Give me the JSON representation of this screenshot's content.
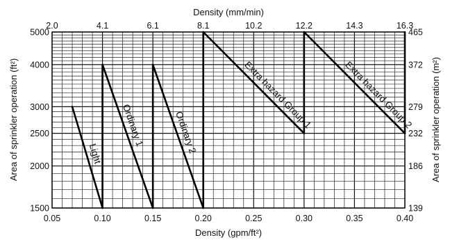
{
  "chart_data": {
    "type": "line",
    "title": "",
    "xlabel": "Density (gpm/ft²)",
    "xlabel_top": "Density (mm/min)",
    "ylabel": "Area of sprinkler operation (ft²)",
    "ylabel_right": "Area of sprinkler operation (m²)",
    "xlim": [
      0.05,
      0.4
    ],
    "ylim": [
      1500,
      5000
    ],
    "y_scale": "log",
    "grid": true,
    "x_ticks": [
      "0.05",
      "0.10",
      "0.15",
      "0.20",
      "0.25",
      "0.30",
      "0.35",
      "0.40"
    ],
    "x_tick_values": [
      0.05,
      0.1,
      0.15,
      0.2,
      0.25,
      0.3,
      0.35,
      0.4
    ],
    "x_ticks_top": [
      "2.0",
      "4.1",
      "6.1",
      "8.1",
      "10.2",
      "12.2",
      "14.3",
      "16.3"
    ],
    "y_ticks": [
      "1500",
      "2000",
      "2500",
      "3000",
      "4000",
      "5000"
    ],
    "y_tick_values": [
      1500,
      2000,
      2500,
      3000,
      4000,
      5000
    ],
    "y_ticks_right": [
      "139",
      "186",
      "232",
      "279",
      "372",
      "465"
    ],
    "series": [
      {
        "name": "Light",
        "points": [
          [
            0.1,
            1500
          ],
          [
            0.07,
            3000
          ]
        ]
      },
      {
        "name": "Ordinary 1",
        "points": [
          [
            0.15,
            1500
          ],
          [
            0.1,
            4000
          ]
        ]
      },
      {
        "name": "Ordinary 2",
        "points": [
          [
            0.2,
            1500
          ],
          [
            0.15,
            4000
          ]
        ]
      },
      {
        "name": "Extra hazard Group 1",
        "points": [
          [
            0.3,
            2500
          ],
          [
            0.2,
            5000
          ]
        ]
      },
      {
        "name": "Extra hazard Group 2",
        "points": [
          [
            0.4,
            2500
          ],
          [
            0.3,
            5000
          ]
        ]
      }
    ],
    "verticals": [
      {
        "x": 0.1,
        "y": [
          1500,
          4000
        ]
      },
      {
        "x": 0.15,
        "y": [
          1500,
          4000
        ]
      },
      {
        "x": 0.2,
        "y": [
          1500,
          5000
        ]
      },
      {
        "x": 0.3,
        "y": [
          2500,
          5000
        ]
      },
      {
        "x": 0.4,
        "y": [
          2500,
          5000
        ]
      }
    ]
  }
}
